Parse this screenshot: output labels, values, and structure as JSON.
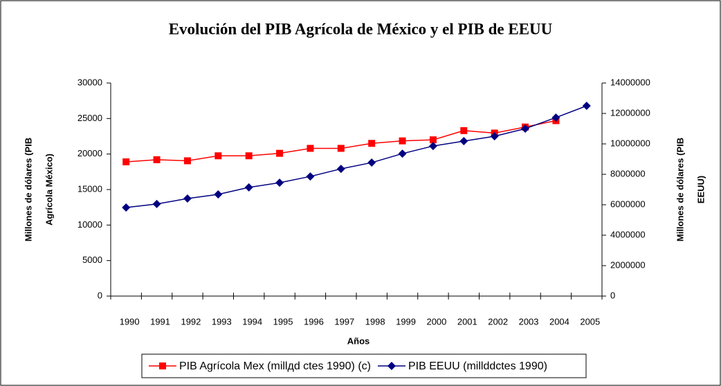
{
  "chart_data": {
    "type": "line",
    "title": "Evolución del PIB Agrícola de México y el PIB de EEUU",
    "xlabel": "Años",
    "ylabel": [
      "Millones de dólares (PIB",
      "Agrícola México)"
    ],
    "y2label": [
      "Millones de dólares (PIB",
      "EEUU)"
    ],
    "categories": [
      "1990",
      "1991",
      "1992",
      "1993",
      "1994",
      "1995",
      "1996",
      "1997",
      "1998",
      "1999",
      "2000",
      "2001",
      "2002",
      "2003",
      "2004",
      "2005"
    ],
    "ylim": [
      0,
      30000
    ],
    "yticks": [
      0,
      5000,
      10000,
      15000,
      20000,
      25000,
      30000
    ],
    "y2lim": [
      0,
      14000000
    ],
    "y2ticks": [
      0,
      2000000,
      4000000,
      6000000,
      8000000,
      10000000,
      12000000,
      14000000
    ],
    "series": [
      {
        "name": "PIB Agrícola Mex (millдd ctes 1990) (c)",
        "color": "#ff0000",
        "marker": "square",
        "values": [
          18900,
          19200,
          19050,
          19750,
          19750,
          20100,
          20800,
          20800,
          21500,
          21850,
          22000,
          23300,
          22950,
          23800,
          24700,
          null
        ]
      },
      {
        "name": "PIB EEUU (millddctes 1990)",
        "color": "#000080",
        "marker": "diamond",
        "axis": "y2",
        "values": [
          5820000,
          6050000,
          6410000,
          6680000,
          7140000,
          7450000,
          7860000,
          8360000,
          8770000,
          9360000,
          9860000,
          10180000,
          10500000,
          11000000,
          11730000,
          12500000
        ]
      }
    ]
  }
}
